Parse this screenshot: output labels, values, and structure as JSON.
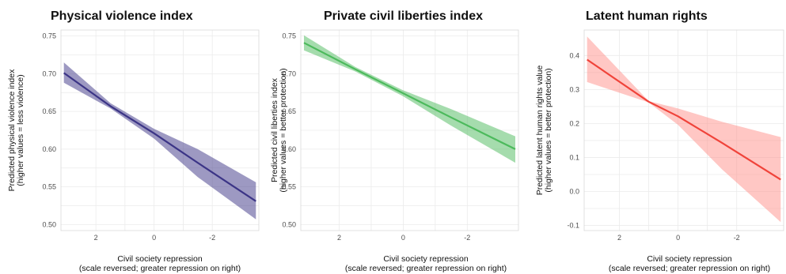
{
  "chart_data": [
    {
      "type": "line",
      "title": "Physical violence index",
      "ylabel_lines": [
        "Predicted physical violence index",
        "(higher values = less violence)"
      ],
      "xlabel_lines": [
        "Civil society repression",
        "(scale reversed; greater repression on right)"
      ],
      "x_reversed": true,
      "xlim": [
        3.2,
        -3.6
      ],
      "ylim": [
        0.492,
        0.758
      ],
      "x_ticks": [
        2,
        0,
        -2
      ],
      "x_tick_labels": [
        "2",
        "0",
        "-2"
      ],
      "y_ticks": [
        0.5,
        0.55,
        0.6,
        0.65,
        0.7,
        0.75
      ],
      "y_tick_labels": [
        "0.50",
        "0.55",
        "0.60",
        "0.65",
        "0.70",
        "0.75"
      ],
      "grid": true,
      "series": [
        {
          "color": "#3b3486",
          "band_color": "#3b3486",
          "x": [
            3.1,
            1.5,
            0.0,
            -1.5,
            -3.5
          ],
          "y": [
            0.701,
            0.657,
            0.621,
            0.582,
            0.531
          ],
          "lower": [
            0.688,
            0.654,
            0.614,
            0.563,
            0.507
          ],
          "upper": [
            0.715,
            0.661,
            0.627,
            0.6,
            0.556
          ]
        }
      ]
    },
    {
      "type": "line",
      "title": "Private civil liberties index",
      "ylabel_lines": [
        "Predicted civil liberties index",
        "(higher values = better protection)"
      ],
      "xlabel_lines": [
        "Civil society repression",
        "(scale reversed; greater repression on right)"
      ],
      "x_reversed": true,
      "xlim": [
        3.2,
        -3.6
      ],
      "ylim": [
        0.492,
        0.758
      ],
      "x_ticks": [
        2,
        0,
        -2
      ],
      "x_tick_labels": [
        "2",
        "0",
        "-2"
      ],
      "y_ticks": [
        0.5,
        0.55,
        0.6,
        0.65,
        0.7,
        0.75
      ],
      "y_tick_labels": [
        "0.50",
        "0.55",
        "0.60",
        "0.65",
        "0.70",
        "0.75"
      ],
      "grid": true,
      "series": [
        {
          "color": "#4cba5c",
          "band_color": "#4cba5c",
          "x": [
            3.1,
            1.5,
            0.0,
            -1.5,
            -3.5
          ],
          "y": [
            0.741,
            0.706,
            0.674,
            0.642,
            0.6
          ],
          "lower": [
            0.731,
            0.703,
            0.67,
            0.631,
            0.582
          ],
          "upper": [
            0.751,
            0.709,
            0.678,
            0.653,
            0.617
          ]
        }
      ]
    },
    {
      "type": "line",
      "title": "Latent human rights",
      "ylabel_lines": [
        "Predicted latent human rights value",
        "(higher values = better protection)"
      ],
      "xlabel_lines": [
        "Civil society repression",
        "(scale reversed; greater repression on right)"
      ],
      "x_reversed": true,
      "xlim": [
        3.2,
        -3.6
      ],
      "ylim": [
        -0.115,
        0.475
      ],
      "x_ticks": [
        2,
        0,
        -2
      ],
      "x_tick_labels": [
        "2",
        "0",
        "-2"
      ],
      "y_ticks": [
        -0.1,
        0.0,
        0.1,
        0.2,
        0.3,
        0.4
      ],
      "y_tick_labels": [
        "-0.1",
        "0.0",
        "0.1",
        "0.2",
        "0.3",
        "0.4"
      ],
      "grid": true,
      "series": [
        {
          "color": "#f0433a",
          "band_color": "#ff8f8a",
          "x": [
            3.1,
            1.0,
            0.0,
            -1.5,
            -3.5
          ],
          "y": [
            0.388,
            0.264,
            0.221,
            0.143,
            0.035
          ],
          "lower": [
            0.322,
            0.262,
            0.196,
            0.065,
            -0.09
          ],
          "upper": [
            0.456,
            0.266,
            0.244,
            0.205,
            0.16
          ]
        }
      ]
    }
  ]
}
